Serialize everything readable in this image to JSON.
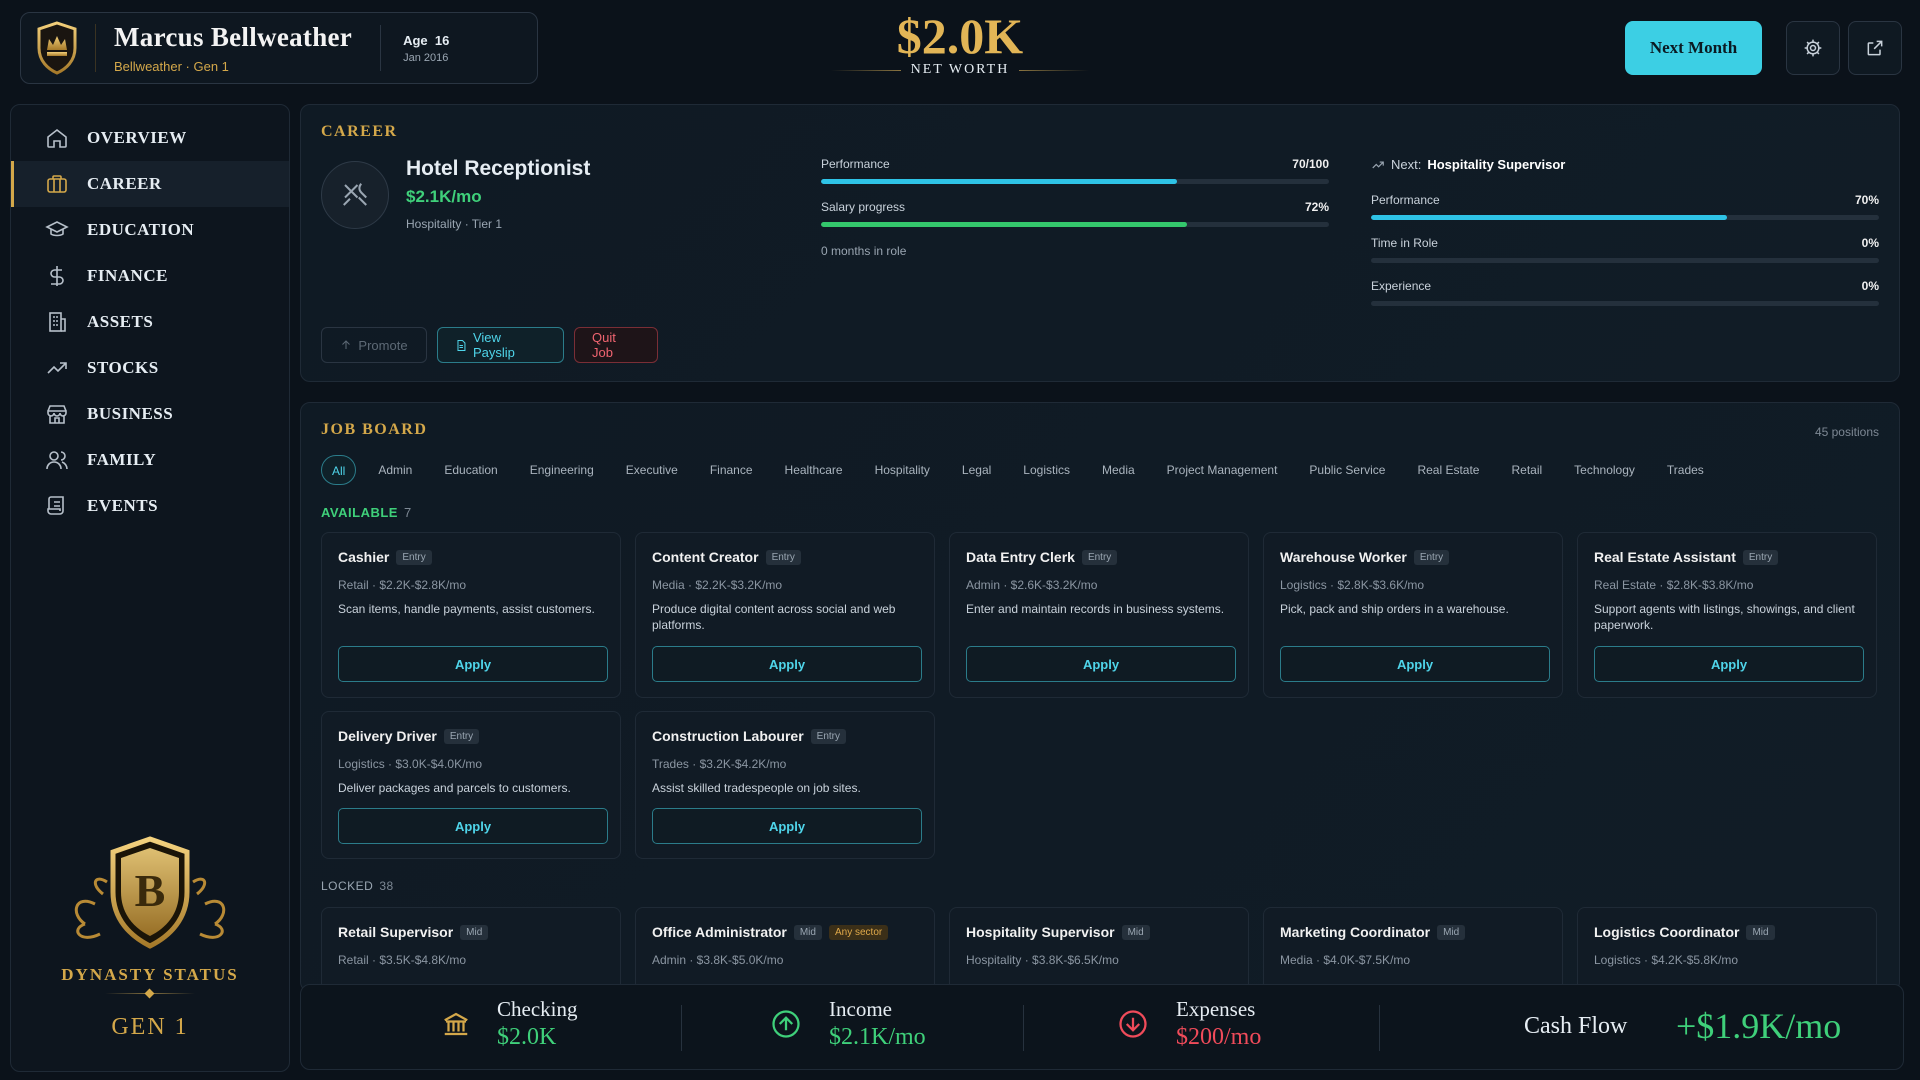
{
  "profile": {
    "name": "Marcus Bellweather",
    "subtitle": "Bellweather · Gen 1",
    "age_label": "Age",
    "age": "16",
    "date": "Jan 2016"
  },
  "networth": {
    "value": "$2.0K",
    "label": "NET WORTH"
  },
  "header": {
    "next_month": "Next Month"
  },
  "sidebar": {
    "items": [
      {
        "label": "OVERVIEW",
        "icon": "home-icon"
      },
      {
        "label": "CAREER",
        "icon": "briefcase-icon"
      },
      {
        "label": "EDUCATION",
        "icon": "graduation-cap-icon"
      },
      {
        "label": "FINANCE",
        "icon": "dollar-icon"
      },
      {
        "label": "ASSETS",
        "icon": "building-icon"
      },
      {
        "label": "STOCKS",
        "icon": "trending-up-icon"
      },
      {
        "label": "BUSINESS",
        "icon": "store-icon"
      },
      {
        "label": "FAMILY",
        "icon": "users-icon"
      },
      {
        "label": "EVENTS",
        "icon": "scroll-icon"
      }
    ],
    "active": "CAREER",
    "dynasty_label": "DYNASTY STATUS",
    "dynasty_gen": "GEN 1",
    "crest_letter": "B"
  },
  "career": {
    "title": "CAREER",
    "job_title": "Hotel Receptionist",
    "salary": "$2.1K/mo",
    "meta": "Hospitality · Tier 1",
    "performance_label": "Performance",
    "performance_value": "70/100",
    "performance_fraction": 0.7,
    "salary_progress_label": "Salary progress",
    "salary_progress_value": "72%",
    "salary_progress_fraction": 0.72,
    "months_in_role": "0 months in role",
    "next_prefix": "Next:",
    "next_title": "Hospitality Supervisor",
    "next_stats": [
      {
        "label": "Performance",
        "value": "70%",
        "fraction": 0.7
      },
      {
        "label": "Time in Role",
        "value": "0%",
        "fraction": 0
      },
      {
        "label": "Experience",
        "value": "0%",
        "fraction": 0
      }
    ],
    "buttons": {
      "promote": "Promote",
      "payslip": "View Payslip",
      "quit": "Quit Job"
    }
  },
  "jobboard": {
    "title": "JOB BOARD",
    "positions": "45 positions",
    "filters": [
      "All",
      "Admin",
      "Education",
      "Engineering",
      "Executive",
      "Finance",
      "Healthcare",
      "Hospitality",
      "Legal",
      "Logistics",
      "Media",
      "Project Management",
      "Public Service",
      "Real Estate",
      "Retail",
      "Technology",
      "Trades"
    ],
    "available_label": "AVAILABLE",
    "available_count": "7",
    "locked_label": "LOCKED",
    "locked_count": "38",
    "apply_label": "Apply",
    "available": [
      {
        "title": "Cashier",
        "level": "Entry",
        "meta": "Retail · $2.2K-$2.8K/mo",
        "desc": "Scan items, handle payments, assist customers."
      },
      {
        "title": "Content Creator",
        "level": "Entry",
        "meta": "Media · $2.2K-$3.2K/mo",
        "desc": "Produce digital content across social and web platforms."
      },
      {
        "title": "Data Entry Clerk",
        "level": "Entry",
        "meta": "Admin · $2.6K-$3.2K/mo",
        "desc": "Enter and maintain records in business systems."
      },
      {
        "title": "Warehouse Worker",
        "level": "Entry",
        "meta": "Logistics · $2.8K-$3.6K/mo",
        "desc": "Pick, pack and ship orders in a warehouse."
      },
      {
        "title": "Real Estate Assistant",
        "level": "Entry",
        "meta": "Real Estate · $2.8K-$3.8K/mo",
        "desc": "Support agents with listings, showings, and client paperwork."
      },
      {
        "title": "Delivery Driver",
        "level": "Entry",
        "meta": "Logistics · $3.0K-$4.0K/mo",
        "desc": "Deliver packages and parcels to customers."
      },
      {
        "title": "Construction Labourer",
        "level": "Entry",
        "meta": "Trades · $3.2K-$4.2K/mo",
        "desc": "Assist skilled tradespeople on job sites."
      }
    ],
    "locked": [
      {
        "title": "Retail Supervisor",
        "level": "Mid",
        "extra": "",
        "meta": "Retail · $3.5K-$4.8K/mo"
      },
      {
        "title": "Office Administrator",
        "level": "Mid",
        "extra": "Any sector",
        "meta": "Admin · $3.8K-$5.0K/mo"
      },
      {
        "title": "Hospitality Supervisor",
        "level": "Mid",
        "extra": "",
        "meta": "Hospitality · $3.8K-$6.5K/mo"
      },
      {
        "title": "Marketing Coordinator",
        "level": "Mid",
        "extra": "",
        "meta": "Media · $4.0K-$7.5K/mo"
      },
      {
        "title": "Logistics Coordinator",
        "level": "Mid",
        "extra": "",
        "meta": "Logistics · $4.2K-$5.8K/mo"
      }
    ]
  },
  "finance": {
    "checking_label": "Checking",
    "checking_value": "$2.0K",
    "income_label": "Income",
    "income_value": "$2.1K/mo",
    "expenses_label": "Expenses",
    "expenses_value": "$200/mo",
    "cashflow_label": "Cash Flow",
    "cashflow_value": "+$1.9K/mo"
  },
  "colors": {
    "gold": "#d4a84a",
    "accent": "#3ccfe4",
    "green": "#3fd07a",
    "red": "#f04b5a"
  }
}
